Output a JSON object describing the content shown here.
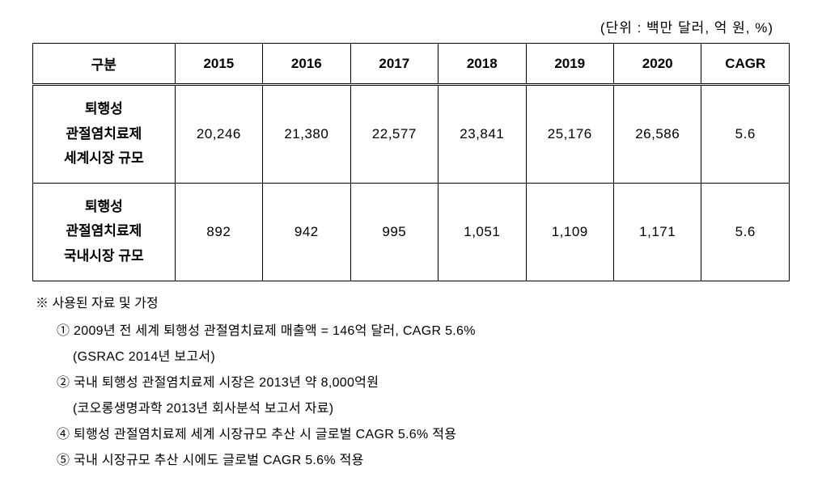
{
  "unit_label": "(단위 : 백만 달러, 억 원, %)",
  "table": {
    "columns": [
      "구분",
      "2015",
      "2016",
      "2017",
      "2018",
      "2019",
      "2020",
      "CAGR"
    ],
    "rows": [
      {
        "label_line1": "퇴행성",
        "label_line2": "관절염치료제",
        "label_line3": "세계시장 규모",
        "values": [
          "20,246",
          "21,380",
          "22,577",
          "23,841",
          "25,176",
          "26,586",
          "5.6"
        ]
      },
      {
        "label_line1": "퇴행성",
        "label_line2": "관절염치료제",
        "label_line3": "국내시장 규모",
        "values": [
          "892",
          "942",
          "995",
          "1,051",
          "1,109",
          "1,171",
          "5.6"
        ]
      }
    ]
  },
  "notes": {
    "heading": "※ 사용된 자료 및 가정",
    "items": [
      {
        "main": "① 2009년 전 세계 퇴행성 관절염치료제 매출액 = 146억 달러, CAGR 5.6%",
        "sub": "(GSRAC   2014년 보고서)"
      },
      {
        "main": "② 국내 퇴행성 관절염치료제 시장은 2013년 약 8,000억원",
        "sub": "(코오롱생명과학 2013년 회사분석 보고서 자료)"
      },
      {
        "main": "④ 퇴행성 관절염치료제 세계 시장규모 추산 시 글로벌 CAGR 5.6% 적용",
        "sub": null
      },
      {
        "main": "⑤ 국내 시장규모 추산 시에도  글로벌 CAGR  5.6% 적용",
        "sub": null
      }
    ]
  },
  "style": {
    "background_color": "#ffffff",
    "border_color": "#000000",
    "text_color": "#000000",
    "header_font_weight": "bold",
    "body_font_size": 17,
    "notes_font_size": 16,
    "line_height": 2.0
  }
}
